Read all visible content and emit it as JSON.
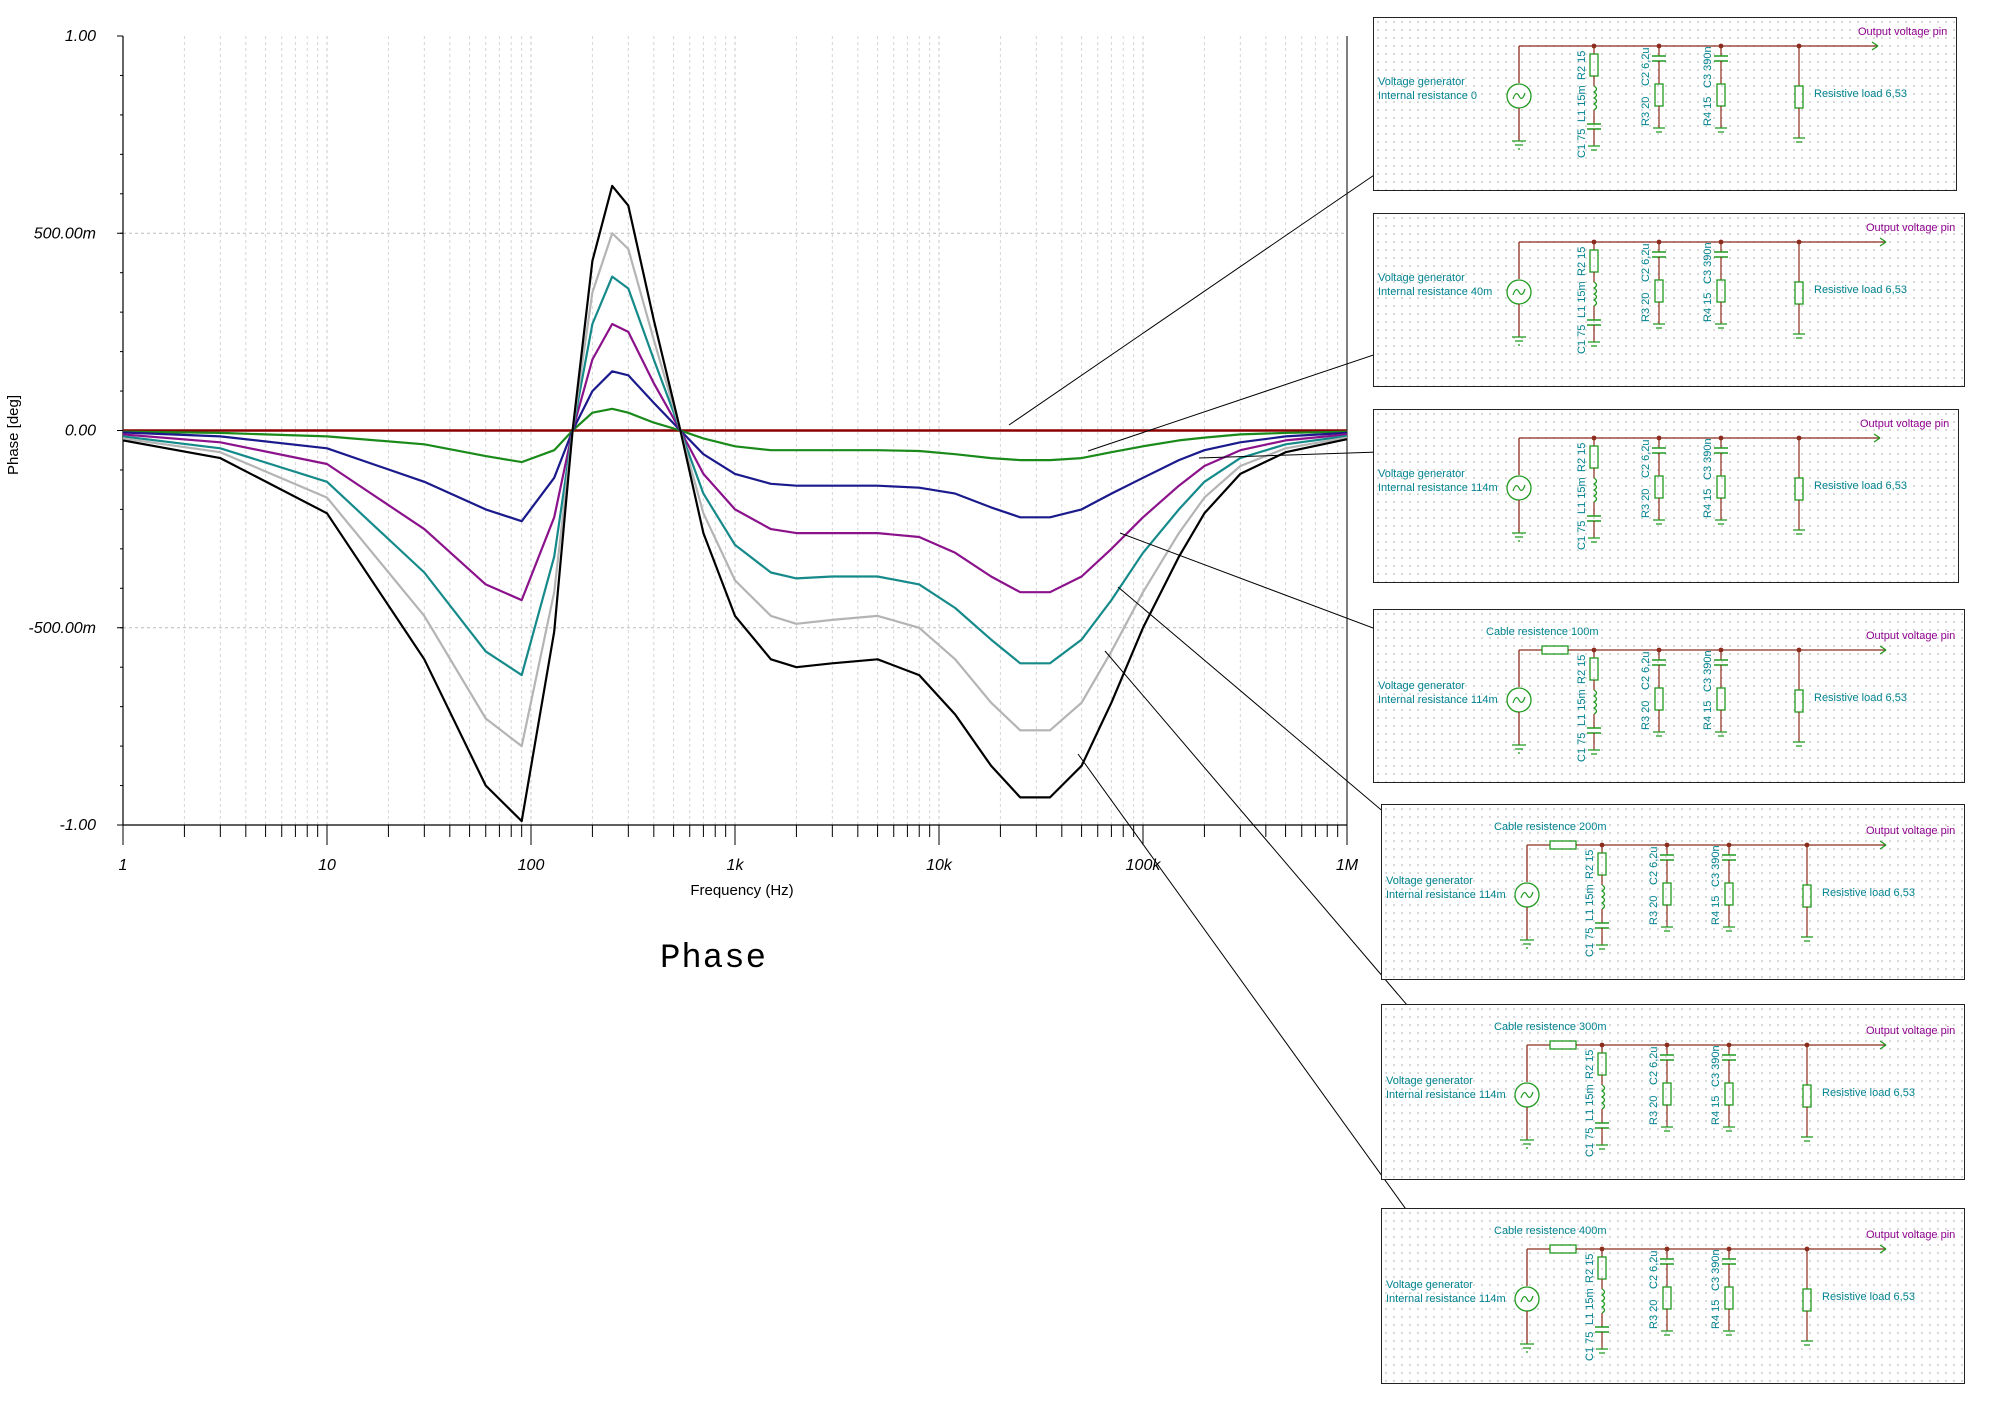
{
  "chart_data": {
    "type": "line",
    "title": "",
    "xlabel": "Frequency (Hz)",
    "ylabel": "Phase [deg]",
    "xscale": "log",
    "xlim": [
      1,
      1000000
    ],
    "ylim": [
      -1.0,
      1.0
    ],
    "grid": true,
    "x_ticks": [
      "1",
      "10",
      "100",
      "1k",
      "10k",
      "100k",
      "1M"
    ],
    "y_ticks": [
      "1.00",
      "500.00m",
      "0.00",
      "-500.00m",
      "-1.00"
    ],
    "x": [
      1,
      3,
      10,
      30,
      60,
      90,
      130,
      160,
      200,
      250,
      300,
      400,
      540,
      700,
      1000,
      1500,
      2000,
      3000,
      5000,
      8000,
      12000,
      18000,
      25000,
      35000,
      50000,
      70000,
      100000,
      150000,
      200000,
      300000,
      500000,
      1000000
    ],
    "series": [
      {
        "color": "#8b0000",
        "values": [
          0,
          0,
          0,
          0,
          0,
          0,
          0,
          0,
          0,
          0,
          0,
          0,
          0,
          0,
          0,
          0,
          0,
          0,
          0,
          0,
          0,
          0,
          0,
          0,
          0,
          0,
          0,
          0,
          0,
          0,
          0,
          0
        ]
      },
      {
        "color": "#1a8a1a",
        "values": [
          -0.003,
          -0.006,
          -0.015,
          -0.035,
          -0.065,
          -0.08,
          -0.05,
          0.0,
          0.045,
          0.055,
          0.045,
          0.02,
          0.0,
          -0.02,
          -0.04,
          -0.05,
          -0.05,
          -0.05,
          -0.05,
          -0.052,
          -0.06,
          -0.07,
          -0.075,
          -0.075,
          -0.07,
          -0.055,
          -0.04,
          -0.025,
          -0.018,
          -0.01,
          -0.006,
          -0.003
        ]
      },
      {
        "color": "#1a1a8c",
        "values": [
          -0.005,
          -0.015,
          -0.045,
          -0.13,
          -0.2,
          -0.23,
          -0.12,
          0.0,
          0.1,
          0.15,
          0.14,
          0.07,
          0.0,
          -0.06,
          -0.11,
          -0.135,
          -0.14,
          -0.14,
          -0.14,
          -0.145,
          -0.16,
          -0.195,
          -0.22,
          -0.22,
          -0.2,
          -0.16,
          -0.12,
          -0.075,
          -0.05,
          -0.03,
          -0.015,
          -0.006
        ]
      },
      {
        "color": "#8b128b",
        "values": [
          -0.01,
          -0.03,
          -0.085,
          -0.25,
          -0.39,
          -0.43,
          -0.22,
          0.0,
          0.18,
          0.27,
          0.25,
          0.12,
          0.0,
          -0.11,
          -0.2,
          -0.25,
          -0.26,
          -0.26,
          -0.26,
          -0.27,
          -0.31,
          -0.37,
          -0.41,
          -0.41,
          -0.37,
          -0.3,
          -0.22,
          -0.14,
          -0.09,
          -0.05,
          -0.025,
          -0.01
        ]
      },
      {
        "color": "#168a8a",
        "values": [
          -0.015,
          -0.045,
          -0.13,
          -0.36,
          -0.56,
          -0.62,
          -0.32,
          0.0,
          0.27,
          0.39,
          0.36,
          0.18,
          0.0,
          -0.16,
          -0.29,
          -0.36,
          -0.375,
          -0.37,
          -0.37,
          -0.39,
          -0.45,
          -0.53,
          -0.59,
          -0.59,
          -0.53,
          -0.43,
          -0.31,
          -0.2,
          -0.13,
          -0.07,
          -0.035,
          -0.014
        ]
      },
      {
        "color": "#b4b4b4",
        "values": [
          -0.02,
          -0.055,
          -0.17,
          -0.47,
          -0.73,
          -0.8,
          -0.41,
          0.0,
          0.35,
          0.5,
          0.46,
          0.23,
          0.0,
          -0.21,
          -0.38,
          -0.47,
          -0.49,
          -0.48,
          -0.47,
          -0.5,
          -0.58,
          -0.69,
          -0.76,
          -0.76,
          -0.69,
          -0.56,
          -0.41,
          -0.26,
          -0.17,
          -0.09,
          -0.045,
          -0.018
        ]
      },
      {
        "color": "#000000",
        "values": [
          -0.025,
          -0.07,
          -0.21,
          -0.58,
          -0.9,
          -0.99,
          -0.51,
          0.0,
          0.43,
          0.62,
          0.57,
          0.28,
          0.0,
          -0.26,
          -0.47,
          -0.58,
          -0.6,
          -0.59,
          -0.58,
          -0.62,
          -0.72,
          -0.85,
          -0.93,
          -0.93,
          -0.85,
          -0.69,
          -0.5,
          -0.32,
          -0.21,
          -0.11,
          -0.055,
          -0.022
        ]
      }
    ]
  },
  "caption": "Phase",
  "panels": [
    {
      "gen1": "Voltage generator",
      "gen2": "Internal resistance 0",
      "cable": "",
      "out": "Output voltage pin",
      "r2": "R2 15",
      "l1": "L1 15m",
      "c1": "C1 75",
      "r3": "R3 20",
      "c2": "C2 6,2u",
      "r4": "R4 15",
      "c3": "C3 390n",
      "load": "Resistive load 6,53",
      "curve_color": "#8b0000"
    },
    {
      "gen1": "Voltage generator",
      "gen2": "Internal resistance 40m",
      "cable": "",
      "out": "Output voltage pin",
      "r2": "R2 15",
      "l1": "L1 15m",
      "c1": "C1 75",
      "r3": "R3 20",
      "c2": "C2 6,2u",
      "r4": "R4 15",
      "c3": "C3 390n",
      "load": "Resistive load 6,53",
      "curve_color": "#1a8a1a"
    },
    {
      "gen1": "Voltage generator",
      "gen2": "Internal resistance 114m",
      "cable": "",
      "out": "Output voltage pin",
      "r2": "R2 15",
      "l1": "L1 15m",
      "c1": "C1 75",
      "r3": "R3 20",
      "c2": "C2 6,2u",
      "r4": "R4 15",
      "c3": "C3 390n",
      "load": "Resistive load 6,53",
      "curve_color": "#1a1a8c"
    },
    {
      "gen1": "Voltage generator",
      "gen2": "Internal resistance 114m",
      "cable": "Cable resistence 100m",
      "out": "Output voltage pin",
      "r2": "R2 15",
      "l1": "L1 15m",
      "c1": "C1 75",
      "r3": "R3 20",
      "c2": "C2 6,2u",
      "r4": "R4 15",
      "c3": "C3 390n",
      "load": "Resistive load 6,53",
      "curve_color": "#8b128b"
    },
    {
      "gen1": "Voltage generator",
      "gen2": "Internal resistance 114m",
      "cable": "Cable resistence 200m",
      "out": "Output voltage pin",
      "r2": "R2 15",
      "l1": "L1 15m",
      "c1": "C1 75",
      "r3": "R3 20",
      "c2": "C2 6,2u",
      "r4": "R4 15",
      "c3": "C3 390n",
      "load": "Resistive load 6,53",
      "curve_color": "#168a8a"
    },
    {
      "gen1": "Voltage generator",
      "gen2": "Internal resistance 114m",
      "cable": "Cable resistence 300m",
      "out": "Output voltage pin",
      "r2": "R2 15",
      "l1": "L1 15m",
      "c1": "C1 75",
      "r3": "R3 20",
      "c2": "C2 6,2u",
      "r4": "R4 15",
      "c3": "C3 390n",
      "load": "Resistive load 6,53",
      "curve_color": "#b4b4b4"
    },
    {
      "gen1": "Voltage generator",
      "gen2": "Internal resistance 114m",
      "cable": "Cable resistence 400m",
      "out": "Output voltage pin",
      "r2": "R2 15",
      "l1": "L1 15m",
      "c1": "C1 75",
      "r3": "R3 20",
      "c2": "C2 6,2u",
      "r4": "R4 15",
      "c3": "C3 390n",
      "load": "Resistive load 6,53",
      "curve_color": "#000000"
    }
  ]
}
